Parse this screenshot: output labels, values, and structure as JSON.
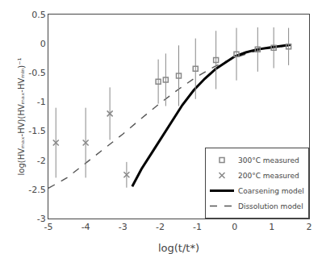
{
  "chart_data": {
    "type": "line",
    "title": "",
    "xlabel": "log(t/t*)",
    "ylabel": "log(HVₘₐₓ-HV)(HVₘₐₓ-HVₘᵢₙ)⁻¹",
    "xlim": [
      -5,
      2
    ],
    "ylim": [
      -3,
      0.5
    ],
    "xticks": [
      -5,
      -4,
      -3,
      -2,
      -1,
      0,
      1,
      2
    ],
    "yticks": [
      -3,
      -2.5,
      -2,
      -1.5,
      -1,
      -0.5,
      0,
      0.5
    ],
    "grid": false,
    "legend": "lower right",
    "series": [
      {
        "name": "300°C measured",
        "type": "scatter",
        "marker": "square",
        "color": "#888888",
        "x": [
          -2.05,
          -1.85,
          -1.5,
          -1.05,
          -0.5,
          0.05,
          0.62,
          1.05,
          1.45
        ],
        "values": [
          -0.65,
          -0.62,
          -0.55,
          -0.43,
          -0.28,
          -0.18,
          -0.1,
          -0.07,
          -0.05
        ],
        "yerr": [
          0.38,
          0.45,
          0.52,
          0.52,
          0.5,
          0.45,
          0.38,
          0.35,
          0.32
        ]
      },
      {
        "name": "200°C measured",
        "type": "scatter",
        "marker": "x",
        "color": "#888888",
        "x": [
          -4.8,
          -4.0,
          -3.35,
          -2.9
        ],
        "values": [
          -1.7,
          -1.7,
          -1.2,
          -2.25
        ],
        "yerr": [
          0.6,
          0.6,
          0.45,
          0.22
        ]
      },
      {
        "name": "Coarsening model",
        "type": "line",
        "line_style": "solid",
        "color": "#000000",
        "x": [
          -2.75,
          -2.5,
          -2.2,
          -2.0,
          -1.7,
          -1.4,
          -1.1,
          -0.8,
          -0.5,
          -0.2,
          0.0,
          0.3,
          0.6,
          0.9,
          1.2,
          1.5
        ],
        "values": [
          -2.45,
          -2.15,
          -1.85,
          -1.65,
          -1.35,
          -1.05,
          -0.8,
          -0.6,
          -0.43,
          -0.3,
          -0.22,
          -0.15,
          -0.1,
          -0.07,
          -0.05,
          -0.02
        ]
      },
      {
        "name": "Dissolution model",
        "type": "line",
        "line_style": "dashed",
        "color": "#555555",
        "x": [
          -5.0,
          -4.5,
          -4.0,
          -3.5,
          -3.0,
          -2.5,
          -2.0,
          -1.5,
          -1.0,
          -0.5,
          0.0,
          0.5,
          1.0,
          1.5
        ],
        "values": [
          -2.48,
          -2.3,
          -2.05,
          -1.8,
          -1.55,
          -1.28,
          -1.02,
          -0.78,
          -0.56,
          -0.38,
          -0.24,
          -0.14,
          -0.07,
          -0.03
        ]
      }
    ]
  }
}
